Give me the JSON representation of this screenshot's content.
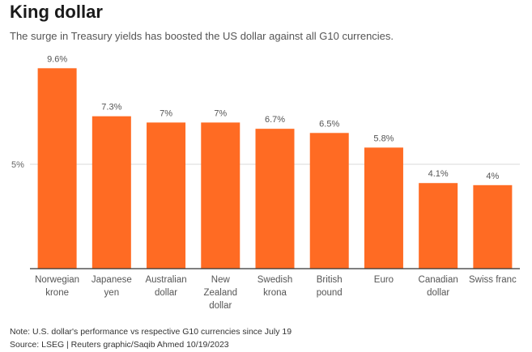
{
  "header": {
    "title": "King dollar",
    "subtitle": "The surge in Treasury yields has boosted the US dollar against all G10 currencies."
  },
  "footer": {
    "note": "Note: U.S. dollar's performance vs respective G10 currencies since July 19",
    "source": "Source: LSEG | Reuters graphic/Saqib Ahmed 10/19/2023"
  },
  "colors": {
    "bar": "#ff6b23",
    "grid": "#d9d9d9",
    "axis": "#333333"
  },
  "chart_data": {
    "type": "bar",
    "title": "King dollar",
    "xlabel": "",
    "ylabel": "",
    "ylim": [
      0,
      10
    ],
    "yticks": [
      {
        "value": 5,
        "label": "5%"
      }
    ],
    "categories": [
      [
        "Norwegian",
        "krone"
      ],
      [
        "Japanese",
        "yen"
      ],
      [
        "Australian",
        "dollar"
      ],
      [
        "New",
        "Zealand",
        "dollar"
      ],
      [
        "Swedish",
        "krona"
      ],
      [
        "British",
        "pound"
      ],
      [
        "Euro"
      ],
      [
        "Canadian",
        "dollar"
      ],
      [
        "Swiss franc"
      ]
    ],
    "values": [
      9.6,
      7.3,
      7.0,
      7.0,
      6.7,
      6.5,
      5.8,
      4.1,
      4.0
    ],
    "labels": [
      "9.6%",
      "7.3%",
      "7%",
      "7%",
      "6.7%",
      "6.5%",
      "5.8%",
      "4.1%",
      "4%"
    ]
  }
}
